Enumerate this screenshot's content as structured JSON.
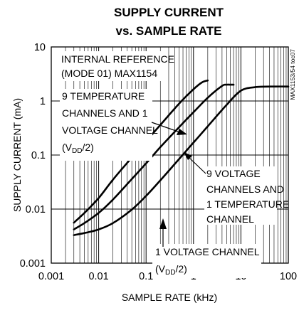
{
  "chart_data": {
    "type": "line",
    "title": "SUPPLY CURRENT",
    "subtitle": "vs. SAMPLE RATE",
    "xlabel": "SAMPLE RATE (kHz)",
    "ylabel": "SUPPLY CURRENT (mA)",
    "xscale": "log",
    "yscale": "log",
    "xlim": [
      0.001,
      100
    ],
    "ylim": [
      0.001,
      10
    ],
    "grid": true,
    "x_tick_labels": [
      "0.001",
      "0.01",
      "0.1",
      "1",
      "10",
      "100"
    ],
    "y_tick_labels": [
      "0.001",
      "0.01",
      "0.1",
      "1",
      "10"
    ],
    "figure_code": "MAX1153/54 toc07",
    "annotations": {
      "condition": [
        "INTERNAL REFERENCE",
        "(MODE 01) MAX1154"
      ],
      "series1": [
        "9 TEMPERATURE",
        "CHANNELS AND 1",
        "VOLTAGE CHANNEL",
        "(V",
        "DD",
        "/2)"
      ],
      "series2": [
        "9 VOLTAGE",
        "CHANNELS AND",
        "1 TEMPERATURE",
        "CHANNEL"
      ],
      "series3": [
        "1 VOLTAGE CHANNEL",
        "(V",
        "DD",
        "/2)"
      ]
    },
    "series": [
      {
        "id": "nine_temp_one_volt",
        "x": [
          0.003,
          0.005,
          0.01,
          0.02,
          0.05,
          0.1,
          0.2,
          0.5,
          1,
          1.5,
          2
        ],
        "y": [
          0.0056,
          0.0085,
          0.016,
          0.035,
          0.09,
          0.18,
          0.36,
          0.9,
          1.65,
          2.2,
          2.4
        ]
      },
      {
        "id": "nine_volt_one_temp",
        "x": [
          0.003,
          0.005,
          0.01,
          0.02,
          0.05,
          0.1,
          0.2,
          0.5,
          1,
          2,
          4,
          5,
          6,
          7
        ],
        "y": [
          0.0042,
          0.0055,
          0.0085,
          0.015,
          0.036,
          0.07,
          0.14,
          0.33,
          0.62,
          1.15,
          1.9,
          2.0,
          2.0,
          2.0
        ]
      },
      {
        "id": "one_volt",
        "x": [
          0.003,
          0.005,
          0.01,
          0.02,
          0.05,
          0.1,
          0.2,
          0.5,
          1,
          2,
          5,
          10,
          20,
          50,
          100
        ],
        "y": [
          0.0033,
          0.0036,
          0.0042,
          0.0055,
          0.0098,
          0.0175,
          0.034,
          0.085,
          0.17,
          0.34,
          0.85,
          1.55,
          1.8,
          1.85,
          1.85
        ]
      }
    ]
  }
}
